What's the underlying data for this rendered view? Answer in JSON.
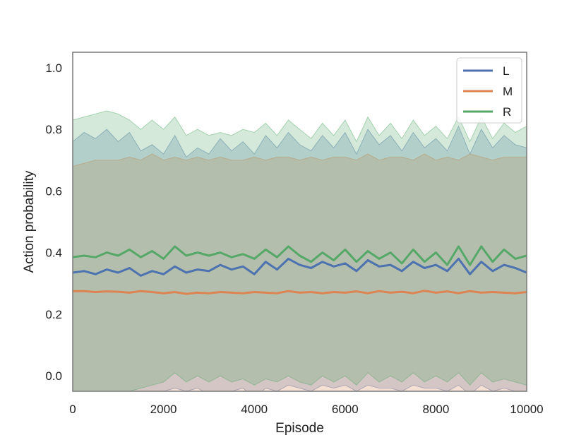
{
  "chart_data": {
    "type": "line",
    "title": "",
    "xlabel": "Episode",
    "ylabel": "Action probability",
    "xlim": [
      0,
      10000
    ],
    "ylim": [
      -0.05,
      1.05
    ],
    "x_ticks": [
      0,
      2000,
      4000,
      6000,
      8000,
      10000
    ],
    "y_ticks": [
      0.0,
      0.2,
      0.4,
      0.6,
      0.8,
      1.0
    ],
    "y_tick_labels": [
      "0.0",
      "0.2",
      "0.4",
      "0.6",
      "0.8",
      "1.0"
    ],
    "grid": false,
    "legend_position": "top-right",
    "band_alpha": 0.25,
    "x": [
      0,
      250,
      500,
      750,
      1000,
      1250,
      1500,
      1750,
      2000,
      2250,
      2500,
      2750,
      3000,
      3250,
      3500,
      3750,
      4000,
      4250,
      4500,
      4750,
      5000,
      5250,
      5500,
      5750,
      6000,
      6250,
      6500,
      6750,
      7000,
      7250,
      7500,
      7750,
      8000,
      8250,
      8500,
      8750,
      9000,
      9250,
      9500,
      9750,
      10000
    ],
    "series": [
      {
        "name": "L",
        "color": "#4c72b0",
        "values": [
          0.335,
          0.34,
          0.33,
          0.345,
          0.335,
          0.35,
          0.325,
          0.34,
          0.33,
          0.355,
          0.335,
          0.345,
          0.34,
          0.36,
          0.345,
          0.355,
          0.33,
          0.37,
          0.345,
          0.38,
          0.36,
          0.35,
          0.37,
          0.355,
          0.365,
          0.34,
          0.375,
          0.355,
          0.36,
          0.34,
          0.37,
          0.35,
          0.36,
          0.34,
          0.38,
          0.33,
          0.37,
          0.34,
          0.36,
          0.35,
          0.335
        ],
        "upper": [
          0.76,
          0.79,
          0.77,
          0.8,
          0.76,
          0.79,
          0.73,
          0.75,
          0.72,
          0.78,
          0.71,
          0.74,
          0.72,
          0.77,
          0.73,
          0.76,
          0.72,
          0.78,
          0.74,
          0.79,
          0.75,
          0.73,
          0.78,
          0.74,
          0.79,
          0.72,
          0.8,
          0.75,
          0.78,
          0.73,
          0.79,
          0.74,
          0.77,
          0.73,
          0.81,
          0.72,
          0.8,
          0.74,
          0.78,
          0.75,
          0.74
        ],
        "lower": [
          -0.09,
          -0.1,
          -0.1,
          -0.09,
          -0.08,
          -0.07,
          -0.06,
          -0.06,
          -0.05,
          -0.04,
          -0.05,
          -0.04,
          -0.06,
          -0.05,
          -0.05,
          -0.04,
          -0.07,
          -0.04,
          -0.05,
          -0.03,
          -0.04,
          -0.05,
          -0.03,
          -0.04,
          -0.03,
          -0.05,
          -0.03,
          -0.04,
          -0.04,
          -0.05,
          -0.03,
          -0.04,
          -0.04,
          -0.05,
          -0.03,
          -0.06,
          -0.03,
          -0.05,
          -0.04,
          -0.05,
          -0.06
        ]
      },
      {
        "name": "M",
        "color": "#dd8452",
        "values": [
          0.275,
          0.275,
          0.272,
          0.274,
          0.273,
          0.27,
          0.275,
          0.272,
          0.268,
          0.272,
          0.266,
          0.27,
          0.268,
          0.272,
          0.27,
          0.268,
          0.272,
          0.27,
          0.268,
          0.275,
          0.27,
          0.272,
          0.268,
          0.272,
          0.27,
          0.274,
          0.268,
          0.275,
          0.27,
          0.273,
          0.268,
          0.276,
          0.27,
          0.274,
          0.268,
          0.275,
          0.27,
          0.272,
          0.27,
          0.268,
          0.272
        ],
        "upper": [
          0.68,
          0.69,
          0.7,
          0.7,
          0.7,
          0.71,
          0.7,
          0.72,
          0.7,
          0.71,
          0.7,
          0.71,
          0.7,
          0.71,
          0.7,
          0.7,
          0.71,
          0.7,
          0.71,
          0.71,
          0.7,
          0.71,
          0.7,
          0.71,
          0.71,
          0.7,
          0.72,
          0.7,
          0.71,
          0.71,
          0.7,
          0.72,
          0.7,
          0.71,
          0.7,
          0.72,
          0.71,
          0.7,
          0.71,
          0.71,
          0.71
        ],
        "lower": [
          -0.13,
          -0.14,
          -0.14,
          -0.13,
          -0.13,
          -0.13,
          -0.12,
          -0.12,
          -0.12,
          -0.11,
          -0.12,
          -0.11,
          -0.12,
          -0.11,
          -0.11,
          -0.11,
          -0.11,
          -0.11,
          -0.11,
          -0.1,
          -0.11,
          -0.11,
          -0.1,
          -0.11,
          -0.1,
          -0.11,
          -0.1,
          -0.11,
          -0.1,
          -0.11,
          -0.1,
          -0.11,
          -0.1,
          -0.11,
          -0.1,
          -0.11,
          -0.1,
          -0.11,
          -0.1,
          -0.11,
          -0.11
        ]
      },
      {
        "name": "R",
        "color": "#55a868",
        "values": [
          0.385,
          0.39,
          0.385,
          0.4,
          0.39,
          0.41,
          0.385,
          0.405,
          0.38,
          0.42,
          0.39,
          0.4,
          0.39,
          0.4,
          0.385,
          0.395,
          0.38,
          0.41,
          0.385,
          0.42,
          0.39,
          0.37,
          0.4,
          0.375,
          0.41,
          0.37,
          0.405,
          0.38,
          0.4,
          0.365,
          0.41,
          0.37,
          0.4,
          0.36,
          0.42,
          0.36,
          0.42,
          0.37,
          0.41,
          0.38,
          0.39
        ],
        "upper": [
          0.83,
          0.84,
          0.85,
          0.86,
          0.85,
          0.83,
          0.8,
          0.83,
          0.8,
          0.84,
          0.78,
          0.8,
          0.78,
          0.79,
          0.78,
          0.8,
          0.79,
          0.82,
          0.78,
          0.83,
          0.8,
          0.77,
          0.82,
          0.78,
          0.83,
          0.76,
          0.84,
          0.78,
          0.82,
          0.77,
          0.83,
          0.78,
          0.81,
          0.77,
          0.84,
          0.76,
          0.84,
          0.77,
          0.82,
          0.79,
          0.81
        ],
        "lower": [
          -0.06,
          -0.07,
          -0.07,
          -0.06,
          -0.06,
          -0.05,
          -0.04,
          -0.03,
          -0.02,
          0.01,
          -0.02,
          0.0,
          -0.02,
          0.0,
          -0.02,
          -0.01,
          -0.03,
          -0.01,
          -0.02,
          0.0,
          -0.02,
          -0.03,
          0.0,
          -0.02,
          0.0,
          -0.03,
          0.01,
          -0.02,
          0.0,
          -0.02,
          0.01,
          -0.02,
          0.0,
          -0.02,
          0.01,
          -0.03,
          0.01,
          -0.02,
          -0.01,
          -0.02,
          -0.03
        ]
      }
    ]
  }
}
